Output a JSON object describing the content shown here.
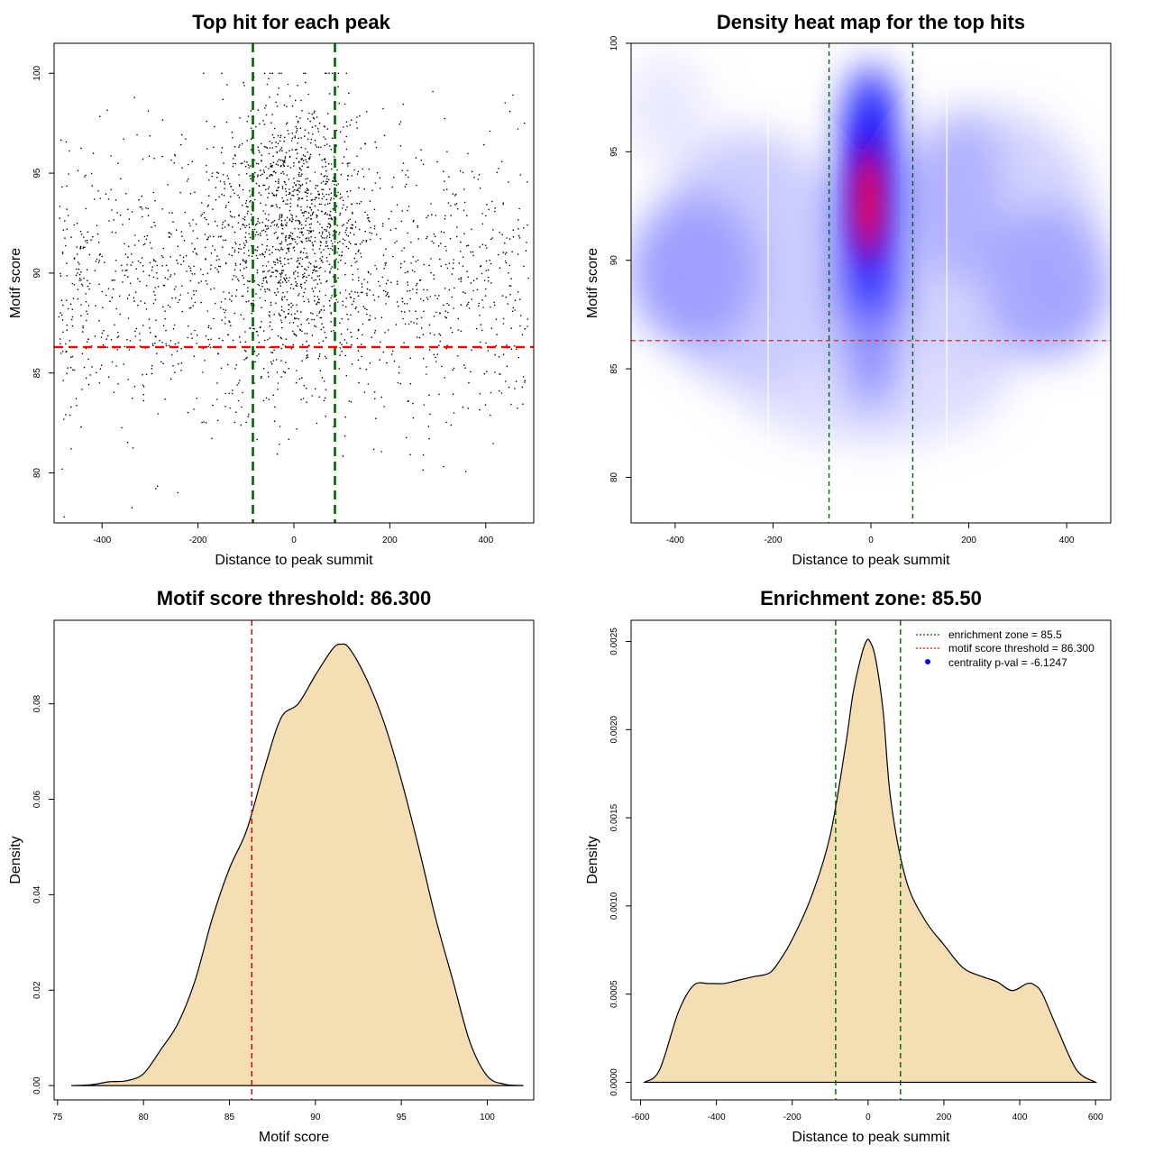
{
  "chart_data": [
    {
      "type": "scatter",
      "title": "Top hit for each peak",
      "xlabel": "Distance to peak summit",
      "ylabel": "Motif score",
      "xlim": [
        -500,
        500
      ],
      "ylim": [
        77.5,
        101.5
      ],
      "xticks": [
        -400,
        -200,
        0,
        200,
        400
      ],
      "yticks": [
        80,
        85,
        90,
        95,
        100
      ],
      "vlines": [
        -85.5,
        85.5
      ],
      "hline": 86.3,
      "point_count": 2600,
      "score_range": [
        77.8,
        100
      ],
      "grid": false
    },
    {
      "type": "heatmap",
      "title": "Density heat map for the top hits",
      "xlabel": "Distance to peak summit",
      "ylabel": "Motif score",
      "xlim": [
        -490,
        490
      ],
      "ylim": [
        77.9,
        100
      ],
      "xticks": [
        -400,
        -200,
        0,
        200,
        400
      ],
      "yticks": [
        80,
        85,
        90,
        95,
        100
      ],
      "vlines": [
        -85.5,
        85.5
      ],
      "white_lines": [
        -210,
        155
      ],
      "hline": 86.3,
      "density_peak": {
        "x": -5,
        "y": 92.7
      },
      "colors": [
        "#ffffff",
        "#0000ff",
        "#ff0000"
      ],
      "grid": false
    },
    {
      "type": "area",
      "title": "Motif score threshold: 86.300",
      "xlabel": "Motif score",
      "ylabel": "Density",
      "xlim": [
        74.8,
        102.7
      ],
      "ylim": [
        -0.003,
        0.0975
      ],
      "xticks": [
        75,
        80,
        85,
        90,
        95,
        100
      ],
      "yticks": [
        0.0,
        0.02,
        0.04,
        0.06,
        0.08
      ],
      "ytick_labels": [
        "0.00",
        "0.02",
        "0.04",
        "0.06",
        "0.08"
      ],
      "vline": 86.3,
      "fill": "#f5deb3",
      "x": [
        75.8,
        77,
        78,
        79,
        80,
        81,
        82,
        83,
        84,
        85,
        86,
        87,
        88,
        89,
        90,
        91,
        91.5,
        92,
        93,
        94,
        95,
        96,
        97,
        98,
        99,
        100,
        101,
        102.1
      ],
      "y": [
        0,
        0.0002,
        0.0008,
        0.001,
        0.0025,
        0.0075,
        0.013,
        0.022,
        0.035,
        0.0455,
        0.0535,
        0.066,
        0.077,
        0.08,
        0.086,
        0.0915,
        0.0925,
        0.0915,
        0.085,
        0.076,
        0.064,
        0.05,
        0.035,
        0.022,
        0.009,
        0.002,
        0.0003,
        0
      ]
    },
    {
      "type": "area",
      "title": "Enrichment zone: 85.50",
      "xlabel": "Distance to peak summit",
      "ylabel": "Density",
      "xlim": [
        -625,
        640
      ],
      "ylim": [
        -0.0001,
        0.00262
      ],
      "xticks": [
        -600,
        -400,
        -200,
        0,
        200,
        400,
        600
      ],
      "yticks": [
        0.0,
        0.0005,
        0.001,
        0.0015,
        0.002,
        0.0025
      ],
      "ytick_labels": [
        "0.0000",
        "0.0005",
        "0.0010",
        "0.0015",
        "0.0020",
        "0.0025"
      ],
      "vlines": [
        -85.5,
        85.5
      ],
      "fill": "#f5deb3",
      "x": [
        -590,
        -550,
        -500,
        -460,
        -420,
        -380,
        -340,
        -300,
        -260,
        -230,
        -200,
        -150,
        -100,
        -60,
        -40,
        -20,
        -5,
        5,
        20,
        40,
        60,
        100,
        150,
        200,
        250,
        300,
        340,
        380,
        420,
        440,
        460,
        500,
        550,
        600
      ],
      "y": [
        0,
        7e-05,
        0.0004,
        0.00055,
        0.00056,
        0.00056,
        0.00058,
        0.0006,
        0.00062,
        0.0007,
        0.00081,
        0.00105,
        0.0014,
        0.0019,
        0.0022,
        0.0024,
        0.0025,
        0.0025,
        0.0024,
        0.0021,
        0.0016,
        0.00115,
        0.00092,
        0.00078,
        0.00065,
        0.0006,
        0.00057,
        0.00052,
        0.00056,
        0.00055,
        0.0005,
        0.0003,
        7e-05,
        0
      ],
      "legend": [
        {
          "label": "enrichment zone = 85.5",
          "color": "#006400",
          "style": "dotted-line"
        },
        {
          "label": "motif score threshold = 86.300",
          "color": "#ff0000",
          "style": "dotted-line"
        },
        {
          "label": "centrality p-val = -6.1247",
          "color": "#0000ff",
          "style": "point"
        }
      ],
      "legend_position": "top-right"
    }
  ]
}
